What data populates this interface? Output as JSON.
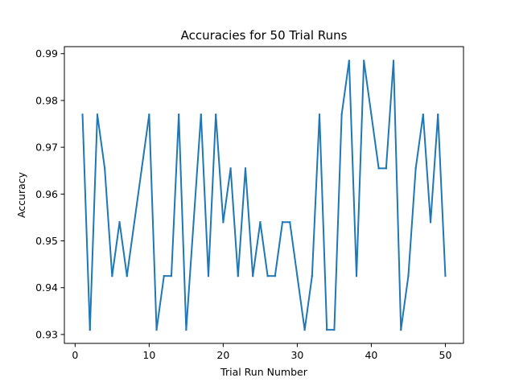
{
  "chart_data": {
    "type": "line",
    "title": "Accuracies for 50 Trial Runs",
    "xlabel": "Trial Run Number",
    "ylabel": "Accuracy",
    "xlim": [
      -1.45,
      52.45
    ],
    "ylim": [
      0.9281,
      0.9915
    ],
    "xticks": [
      0,
      10,
      20,
      30,
      40,
      50
    ],
    "xtick_labels": [
      "0",
      "10",
      "20",
      "30",
      "40",
      "50"
    ],
    "yticks": [
      0.93,
      0.94,
      0.95,
      0.96,
      0.97,
      0.98,
      0.99
    ],
    "ytick_labels": [
      "0.93",
      "0.94",
      "0.95",
      "0.96",
      "0.97",
      "0.98",
      "0.99"
    ],
    "grid": false,
    "series": [
      {
        "color": "#1f77b4",
        "x": [
          1,
          2,
          3,
          4,
          5,
          6,
          7,
          8,
          9,
          10,
          11,
          12,
          13,
          14,
          15,
          16,
          17,
          18,
          19,
          20,
          21,
          22,
          23,
          24,
          25,
          26,
          27,
          28,
          29,
          30,
          31,
          32,
          33,
          34,
          35,
          36,
          37,
          38,
          39,
          40,
          41,
          42,
          43,
          44,
          45,
          46,
          47,
          48,
          49,
          50
        ],
        "y": [
          0.977,
          0.931,
          0.977,
          0.9655,
          0.9425,
          0.954,
          0.9425,
          0.954,
          0.9655,
          0.977,
          0.931,
          0.9425,
          0.9425,
          0.977,
          0.931,
          0.954,
          0.977,
          0.9425,
          0.977,
          0.954,
          0.9655,
          0.9425,
          0.9655,
          0.9425,
          0.954,
          0.9425,
          0.9425,
          0.954,
          0.954,
          0.9425,
          0.931,
          0.9425,
          0.977,
          0.931,
          0.931,
          0.977,
          0.9885,
          0.9425,
          0.9885,
          0.977,
          0.9655,
          0.9655,
          0.9885,
          0.931,
          0.9425,
          0.9655,
          0.977,
          0.954,
          0.977,
          0.9425
        ]
      }
    ]
  }
}
